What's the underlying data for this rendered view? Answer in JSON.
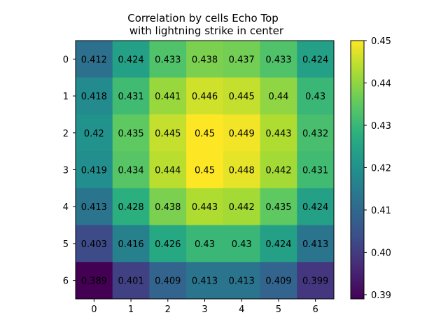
{
  "chart_data": {
    "type": "heatmap",
    "title_lines": [
      "Correlation by cells Echo Top",
      "with lightning strike in center"
    ],
    "x_categories": [
      "0",
      "1",
      "2",
      "3",
      "4",
      "5",
      "6"
    ],
    "y_categories": [
      "0",
      "1",
      "2",
      "3",
      "4",
      "5",
      "6"
    ],
    "values": [
      [
        0.412,
        0.424,
        0.433,
        0.438,
        0.437,
        0.433,
        0.424
      ],
      [
        0.418,
        0.431,
        0.441,
        0.446,
        0.445,
        0.44,
        0.43
      ],
      [
        0.42,
        0.435,
        0.445,
        0.45,
        0.449,
        0.443,
        0.432
      ],
      [
        0.419,
        0.434,
        0.444,
        0.45,
        0.448,
        0.442,
        0.431
      ],
      [
        0.413,
        0.428,
        0.438,
        0.443,
        0.442,
        0.435,
        0.424
      ],
      [
        0.403,
        0.416,
        0.426,
        0.43,
        0.43,
        0.424,
        0.413
      ],
      [
        0.389,
        0.401,
        0.409,
        0.413,
        0.413,
        0.409,
        0.399
      ]
    ],
    "cell_labels": [
      [
        "0.412",
        "0.424",
        "0.433",
        "0.438",
        "0.437",
        "0.433",
        "0.424"
      ],
      [
        "0.418",
        "0.431",
        "0.441",
        "0.446",
        "0.445",
        "0.44",
        "0.43"
      ],
      [
        "0.42",
        "0.435",
        "0.445",
        "0.45",
        "0.449",
        "0.443",
        "0.432"
      ],
      [
        "0.419",
        "0.434",
        "0.444",
        "0.45",
        "0.448",
        "0.442",
        "0.431"
      ],
      [
        "0.413",
        "0.428",
        "0.438",
        "0.443",
        "0.442",
        "0.435",
        "0.424"
      ],
      [
        "0.403",
        "0.416",
        "0.426",
        "0.43",
        "0.43",
        "0.424",
        "0.413"
      ],
      [
        "0.389",
        "0.401",
        "0.409",
        "0.413",
        "0.413",
        "0.409",
        "0.399"
      ]
    ],
    "colorbar": {
      "colormap": "viridis",
      "range": [
        0.389,
        0.45
      ],
      "ticks": [
        0.39,
        0.4,
        0.41,
        0.42,
        0.43,
        0.44,
        0.45
      ],
      "tick_labels": [
        "0.39",
        "0.40",
        "0.41",
        "0.42",
        "0.43",
        "0.44",
        "0.45"
      ]
    },
    "legend": "none",
    "grid": false
  }
}
